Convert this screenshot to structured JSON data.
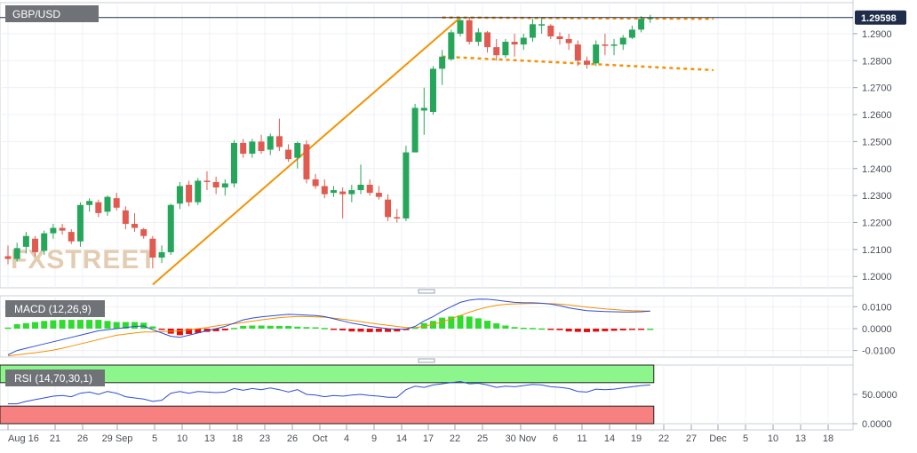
{
  "chart_data": [
    {
      "type": "candlestick",
      "title": "GBP/USD",
      "watermark": "FXSTREET",
      "last_price": "1.29598",
      "y_ticks": [
        "1.2900",
        "1.2800",
        "1.2700",
        "1.2600",
        "1.2500",
        "1.2400",
        "1.2300",
        "1.2200",
        "1.2100",
        "1.2000"
      ],
      "ylim": [
        1.1958,
        1.3015
      ],
      "x_ticks": [
        "Aug 16",
        "21",
        "26",
        "29 Sep",
        "5",
        "10",
        "13",
        "18",
        "23",
        "26",
        "Oct",
        "4",
        "9",
        "14",
        "17",
        "22",
        "25",
        "30 Nov",
        "6",
        "11",
        "14",
        "19",
        "22",
        "27",
        "Dec",
        "5",
        "10",
        "13",
        "18"
      ],
      "grid": true,
      "candles": [
        [
          1.2075,
          1.2115,
          1.2045,
          1.2065
        ],
        [
          1.2065,
          1.2125,
          1.2055,
          1.2105
        ],
        [
          1.211,
          1.2165,
          1.2085,
          1.215
        ],
        [
          1.214,
          1.215,
          1.2075,
          1.209
        ],
        [
          1.2095,
          1.217,
          1.208,
          1.216
        ],
        [
          1.216,
          1.2195,
          1.214,
          1.218
        ],
        [
          1.218,
          1.2195,
          1.2155,
          1.217
        ],
        [
          1.2165,
          1.2175,
          1.212,
          1.213
        ],
        [
          1.213,
          1.2275,
          1.211,
          1.2265
        ],
        [
          1.2265,
          1.229,
          1.224,
          1.228
        ],
        [
          1.2275,
          1.2285,
          1.222,
          1.2235
        ],
        [
          1.224,
          1.23,
          1.2225,
          1.2295
        ],
        [
          1.229,
          1.231,
          1.2245,
          1.2255
        ],
        [
          1.2245,
          1.226,
          1.2175,
          1.2195
        ],
        [
          1.2195,
          1.2235,
          1.2165,
          1.218
        ],
        [
          1.2175,
          1.218,
          1.214,
          1.215
        ],
        [
          1.214,
          1.215,
          1.203,
          1.207
        ],
        [
          1.207,
          1.2115,
          1.205,
          1.209
        ],
        [
          1.209,
          1.227,
          1.208,
          1.2265
        ],
        [
          1.227,
          1.235,
          1.225,
          1.2335
        ],
        [
          1.234,
          1.2355,
          1.226,
          1.2275
        ],
        [
          1.2275,
          1.2365,
          1.2265,
          1.2355
        ],
        [
          1.2355,
          1.239,
          1.232,
          1.235
        ],
        [
          1.235,
          1.237,
          1.2305,
          1.233
        ],
        [
          1.233,
          1.236,
          1.23,
          1.2345
        ],
        [
          1.2345,
          1.2505,
          1.233,
          1.2495
        ],
        [
          1.2495,
          1.251,
          1.244,
          1.2455
        ],
        [
          1.2455,
          1.251,
          1.244,
          1.25
        ],
        [
          1.25,
          1.2525,
          1.2455,
          1.2465
        ],
        [
          1.247,
          1.253,
          1.245,
          1.252
        ],
        [
          1.252,
          1.2585,
          1.2465,
          1.248
        ],
        [
          1.247,
          1.249,
          1.2425,
          1.2435
        ],
        [
          1.244,
          1.25,
          1.24,
          1.2495
        ],
        [
          1.249,
          1.2505,
          1.2345,
          1.236
        ],
        [
          1.236,
          1.238,
          1.2325,
          1.2335
        ],
        [
          1.2335,
          1.236,
          1.229,
          1.2305
        ],
        [
          1.231,
          1.2335,
          1.2295,
          1.232
        ],
        [
          1.2315,
          1.233,
          1.2215,
          1.2305
        ],
        [
          1.2305,
          1.234,
          1.2275,
          1.232
        ],
        [
          1.232,
          1.2415,
          1.2305,
          1.234
        ],
        [
          1.234,
          1.236,
          1.23,
          1.231
        ],
        [
          1.231,
          1.2335,
          1.2285,
          1.2295
        ],
        [
          1.2285,
          1.2305,
          1.2205,
          1.222
        ],
        [
          1.222,
          1.225,
          1.22,
          1.2215
        ],
        [
          1.2215,
          1.2485,
          1.2205,
          1.246
        ],
        [
          1.246,
          1.264,
          1.246,
          1.2625
        ],
        [
          1.2615,
          1.27,
          1.2525,
          1.2625
        ],
        [
          1.261,
          1.278,
          1.26,
          1.277
        ],
        [
          1.277,
          1.284,
          1.271,
          1.2815
        ],
        [
          1.2805,
          1.2915,
          1.28,
          1.2905
        ],
        [
          1.29,
          1.2955,
          1.289,
          1.295
        ],
        [
          1.295,
          1.296,
          1.286,
          1.287
        ],
        [
          1.287,
          1.292,
          1.2855,
          1.2905
        ],
        [
          1.2905,
          1.291,
          1.283,
          1.285
        ],
        [
          1.285,
          1.288,
          1.28,
          1.282
        ],
        [
          1.282,
          1.288,
          1.281,
          1.287
        ],
        [
          1.287,
          1.29,
          1.2815,
          1.286
        ],
        [
          1.286,
          1.29,
          1.284,
          1.2885
        ],
        [
          1.2885,
          1.2955,
          1.287,
          1.2935
        ],
        [
          1.2935,
          1.296,
          1.29,
          1.2935
        ],
        [
          1.293,
          1.2935,
          1.288,
          1.289
        ],
        [
          1.289,
          1.2905,
          1.286,
          1.288
        ],
        [
          1.288,
          1.29,
          1.284,
          1.2865
        ],
        [
          1.286,
          1.2875,
          1.278,
          1.28
        ],
        [
          1.28,
          1.2815,
          1.277,
          1.2785
        ],
        [
          1.279,
          1.2875,
          1.278,
          1.286
        ],
        [
          1.286,
          1.29,
          1.282,
          1.2855
        ],
        [
          1.2855,
          1.288,
          1.282,
          1.286
        ],
        [
          1.286,
          1.2895,
          1.284,
          1.2885
        ],
        [
          1.2885,
          1.293,
          1.288,
          1.2915
        ],
        [
          1.2915,
          1.2965,
          1.2905,
          1.2955
        ],
        [
          1.2955,
          1.297,
          1.294,
          1.296
        ]
      ],
      "trendlines": [
        {
          "from": [
            16,
            1.197
          ],
          "to": [
            50,
            1.296
          ],
          "color": "#F39200",
          "style": "solid"
        },
        {
          "from": [
            48,
            1.296
          ],
          "to": [
            78,
            1.2955
          ],
          "color": "#F39200",
          "style": "dotted"
        },
        {
          "from": [
            48,
            1.2815
          ],
          "to": [
            78,
            1.2765
          ],
          "color": "#F39200",
          "style": "dotted"
        }
      ],
      "price_line": 1.29598,
      "colors": {
        "up": "#26A65B",
        "down": "#E05A4F",
        "trend": "#F39200",
        "last_price_bg": "#1F2D4A"
      }
    },
    {
      "type": "macd",
      "label": "MACD (12,26,9)",
      "y_ticks": [
        "0.0100",
        "0.0000",
        "-0.0100"
      ],
      "ylim": [
        -0.013,
        0.015
      ],
      "macd": [
        -0.012,
        -0.01,
        -0.009,
        -0.008,
        -0.007,
        -0.006,
        -0.005,
        -0.004,
        -0.003,
        -0.002,
        -0.001,
        -0.0005,
        0.0,
        0.0005,
        0.001,
        0.0012,
        -0.0005,
        -0.002,
        -0.0035,
        -0.004,
        -0.003,
        -0.002,
        -0.001,
        0.0,
        0.001,
        0.0025,
        0.004,
        0.0048,
        0.0054,
        0.0058,
        0.0062,
        0.0065,
        0.0064,
        0.0062,
        0.006,
        0.0055,
        0.0045,
        0.0035,
        0.0025,
        0.0018,
        0.001,
        0.0005,
        0.0,
        -0.0003,
        -0.0002,
        0.001,
        0.0035,
        0.0055,
        0.008,
        0.01,
        0.012,
        0.013,
        0.0135,
        0.0134,
        0.013,
        0.0125,
        0.012,
        0.0118,
        0.0118,
        0.0116,
        0.0112,
        0.0105,
        0.0095,
        0.0088,
        0.0082,
        0.008,
        0.0078,
        0.0077,
        0.0076,
        0.0076,
        0.0077,
        0.008
      ],
      "signal": [
        -0.0125,
        -0.012,
        -0.0115,
        -0.011,
        -0.0105,
        -0.0098,
        -0.009,
        -0.008,
        -0.007,
        -0.006,
        -0.005,
        -0.004,
        -0.003,
        -0.0025,
        -0.002,
        -0.0015,
        -0.0015,
        -0.0014,
        -0.0012,
        -0.001,
        -0.0005,
        0.0,
        0.0005,
        0.0012,
        0.0018,
        0.0022,
        0.0028,
        0.0034,
        0.004,
        0.0045,
        0.005,
        0.0053,
        0.0055,
        0.0055,
        0.0054,
        0.0052,
        0.0048,
        0.0043,
        0.0038,
        0.0032,
        0.0026,
        0.002,
        0.0015,
        0.001,
        0.0005,
        0.0005,
        0.001,
        0.002,
        0.003,
        0.0045,
        0.006,
        0.0075,
        0.0088,
        0.0098,
        0.0106,
        0.0111,
        0.0113,
        0.0114,
        0.0115,
        0.0115,
        0.0114,
        0.0112,
        0.0108,
        0.0103,
        0.0098,
        0.0094,
        0.009,
        0.0087,
        0.0084,
        0.0082,
        0.0081,
        0.008
      ],
      "colors": {
        "macd": "#2F4FD0",
        "signal": "#F39200",
        "hist_pos": "#2EDB2E",
        "hist_neg": "#E01010"
      }
    },
    {
      "type": "rsi",
      "label": "RSI (14,70,30,1)",
      "y_ticks": [
        "50.0000",
        "0.0000"
      ],
      "ylim": [
        0,
        100
      ],
      "overbought": 70,
      "oversold": 30,
      "values": [
        34,
        34,
        38,
        41,
        44,
        47,
        48,
        46,
        52,
        54,
        50,
        55,
        52,
        46,
        44,
        42,
        38,
        40,
        52,
        55,
        52,
        55,
        54,
        53,
        54,
        60,
        57,
        60,
        58,
        61,
        58,
        54,
        58,
        50,
        49,
        46,
        48,
        47,
        49,
        50,
        48,
        47,
        45,
        45,
        58,
        64,
        62,
        66,
        68,
        70,
        72,
        68,
        69,
        66,
        62,
        64,
        63,
        65,
        67,
        66,
        63,
        62,
        60,
        55,
        54,
        59,
        58,
        59,
        61,
        63,
        65,
        66
      ],
      "colors": {
        "line": "#2F4FD0",
        "overbought_band": "#8CF58C",
        "oversold_band": "#F78080"
      }
    }
  ]
}
